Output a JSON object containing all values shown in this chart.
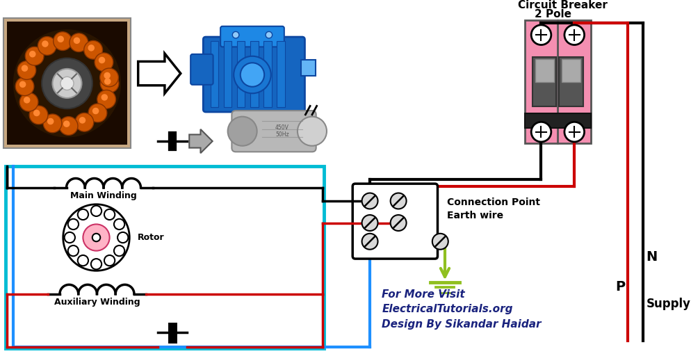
{
  "bg_color": "#ffffff",
  "cyan_border": "#00bcd4",
  "black_wire": "#000000",
  "red_wire": "#cc0000",
  "blue_wire": "#1e90ff",
  "green_wire": "#90c020",
  "pink_breaker": "#f48fb1",
  "text_label_color": "#1a237e",
  "label_main_winding": "Main Winding",
  "label_aux_winding": "Auxiliary Winding",
  "label_rotor": "Rotor",
  "label_connection": "Connection Point",
  "label_earth": "Earth wire",
  "label_breaker_1": "Circuit Breaker",
  "label_breaker_2": "2 Pole",
  "label_N": "N",
  "label_P": "P",
  "label_supply": "Supply",
  "watermark_line1": "For More Visit",
  "watermark_line2": "ElectricalTutorials.org",
  "watermark_line3": "Design By Sikandar Haidar",
  "arrow_color": "#333333"
}
